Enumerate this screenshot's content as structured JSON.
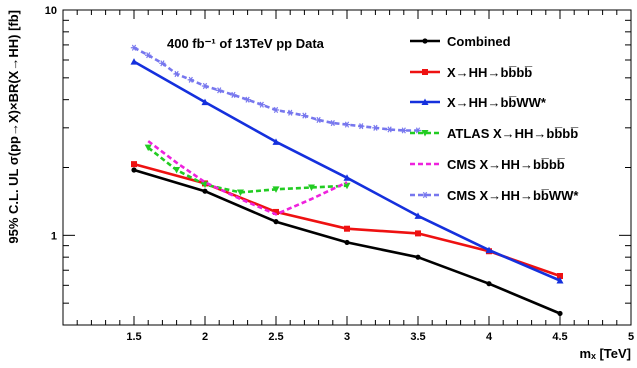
{
  "chart_data": {
    "type": "line",
    "annotation": "400 fb⁻¹ of 13TeV pp Data",
    "xlabel": "mₓ [TeV]",
    "ylabel": "95% C.L. UL  σ(pp→X)×BR(X→HH) [fb]",
    "xlim": [
      1.0,
      5.0
    ],
    "ylim": [
      0.4,
      10
    ],
    "yscale": "log",
    "x_ticks": [
      "1.5",
      "2",
      "2.5",
      "3",
      "3.5",
      "4",
      "4.5",
      "5"
    ],
    "y_ticks": [
      "1",
      "10"
    ],
    "legend_position": "top-right",
    "series": [
      {
        "name": "Combined",
        "color": "#000000",
        "dash": "solid",
        "marker": "circle",
        "x": [
          1.5,
          2.0,
          2.5,
          3.0,
          3.5,
          4.0,
          4.5
        ],
        "y": [
          1.95,
          1.57,
          1.15,
          0.93,
          0.8,
          0.61,
          0.45
        ]
      },
      {
        "name": "X→HH→b̅bb̅b",
        "display": "X→HH→bb̅bb̅",
        "color": "#ee1111",
        "dash": "solid",
        "marker": "square",
        "x": [
          1.5,
          2.0,
          2.5,
          3.0,
          3.5,
          4.0,
          4.5
        ],
        "y": [
          2.07,
          1.7,
          1.27,
          1.07,
          1.02,
          0.85,
          0.66
        ]
      },
      {
        "name": "X→HH→bb̅WW*",
        "color": "#1530dd",
        "dash": "solid",
        "marker": "triangle",
        "x": [
          1.5,
          2.0,
          2.5,
          3.0,
          3.5,
          4.0,
          4.5
        ],
        "y": [
          5.9,
          3.9,
          2.6,
          1.8,
          1.22,
          0.86,
          0.63
        ]
      },
      {
        "name": "ATLAS X→HH→bb̅bb̅",
        "color": "#22cc22",
        "dash": "dash",
        "marker": "triangle-down",
        "x": [
          1.6,
          1.8,
          2.0,
          2.25,
          2.5,
          2.75,
          3.0
        ],
        "y": [
          2.45,
          1.95,
          1.68,
          1.55,
          1.6,
          1.63,
          1.66
        ]
      },
      {
        "name": "CMS X→HH→bb̅bb̅",
        "color": "#ee22dd",
        "dash": "dash",
        "marker": "none",
        "x": [
          1.6,
          1.8,
          2.0,
          2.25,
          2.5,
          2.75,
          3.0
        ],
        "y": [
          2.62,
          2.1,
          1.72,
          1.45,
          1.24,
          1.45,
          1.72
        ]
      },
      {
        "name": "CMS X→HH→bb̅WW*",
        "color": "#7777ee",
        "dash": "dash",
        "marker": "star",
        "x": [
          1.5,
          1.6,
          1.7,
          1.8,
          1.9,
          2.0,
          2.1,
          2.2,
          2.3,
          2.4,
          2.5,
          2.6,
          2.7,
          2.8,
          2.9,
          3.0,
          3.1,
          3.2,
          3.3,
          3.4,
          3.5
        ],
        "y": [
          6.8,
          6.3,
          5.8,
          5.2,
          4.9,
          4.6,
          4.4,
          4.2,
          4.0,
          3.8,
          3.6,
          3.5,
          3.4,
          3.25,
          3.15,
          3.1,
          3.05,
          3.0,
          2.95,
          2.92,
          2.92
        ]
      }
    ]
  },
  "legend": {
    "items": [
      {
        "label": "Combined"
      },
      {
        "label": "X→HH→bb̅bb̅"
      },
      {
        "label": "X→HH→bb̅WW*"
      },
      {
        "label": "ATLAS X→HH→bb̅bb̅"
      },
      {
        "label": "CMS X→HH→bb̅bb̅"
      },
      {
        "label": "CMS X→HH→bb̅WW*"
      }
    ]
  }
}
